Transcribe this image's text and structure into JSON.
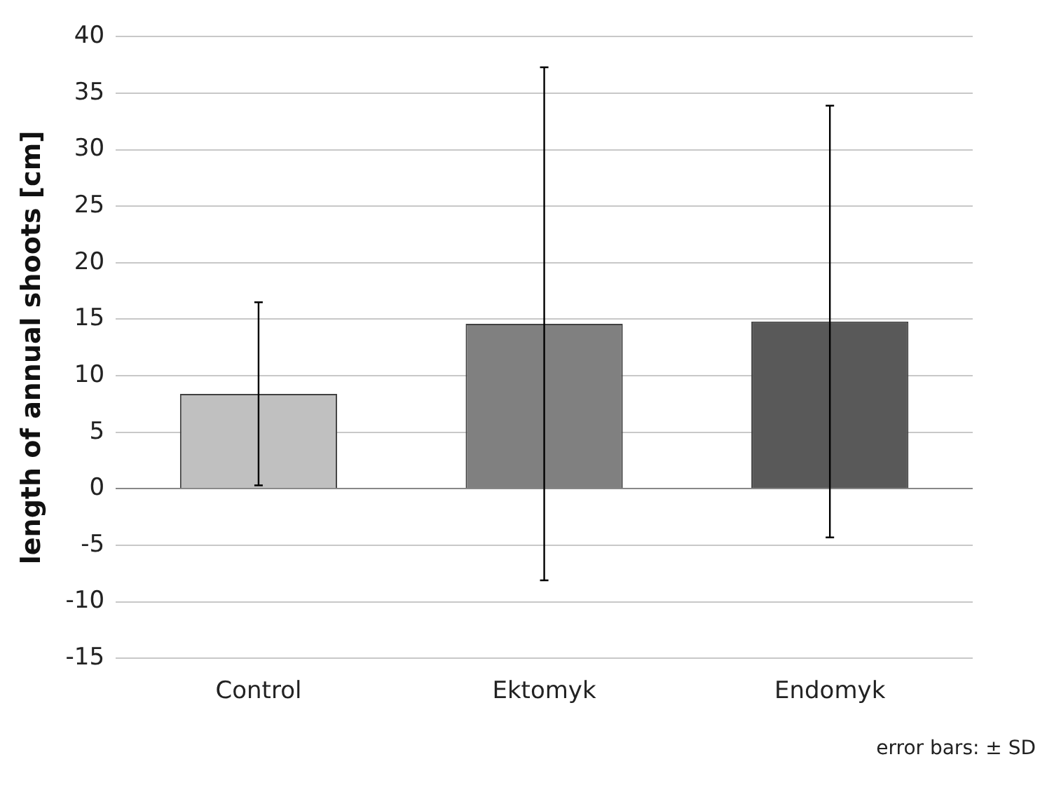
{
  "chart_data": {
    "type": "bar",
    "ylabel": "length of annual shoots [cm]",
    "categories": [
      "Control",
      "Ektomyk",
      "Endomyk"
    ],
    "values": [
      8.4,
      14.6,
      14.8
    ],
    "colors": [
      "#c0c0c0",
      "#808080",
      "#595959"
    ],
    "errors": [
      8.1,
      22.7,
      19.1
    ],
    "ylim": [
      -15,
      40
    ],
    "yticks": [
      -15,
      -10,
      -5,
      0,
      5,
      10,
      15,
      20,
      25,
      30,
      35,
      40
    ],
    "grid": "y",
    "legend": false,
    "annotations": [
      "error bars: ± SD"
    ]
  }
}
